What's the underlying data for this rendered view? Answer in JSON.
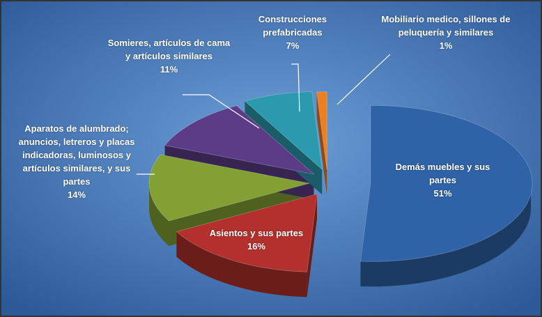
{
  "chart_data": {
    "type": "pie",
    "categories": [
      "Demás muebles y sus partes",
      "Asientos y sus partes",
      "Aparatos de alumbrado; anuncios, letreros y placas indicadoras, luminosos y artículos similares, y sus partes",
      "Somieres, artículos de cama y artículos similares",
      "Construcciones prefabricadas",
      "Mobiliario medico, sillones de peluquería y similares"
    ],
    "values": [
      51,
      16,
      14,
      11,
      7,
      1
    ],
    "value_labels": [
      "51%",
      "16%",
      "14%",
      "11%",
      "7%",
      "1%"
    ],
    "colors": [
      "#2f62a6",
      "#b3302c",
      "#82a132",
      "#5c3c86",
      "#2b9aae",
      "#ec7f21"
    ]
  }
}
